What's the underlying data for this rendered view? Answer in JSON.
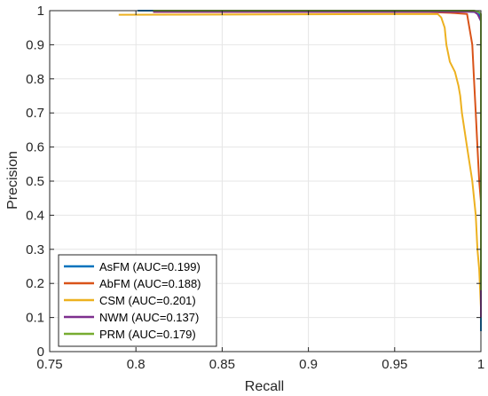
{
  "chart_data": {
    "type": "line",
    "xlabel": "Recall",
    "ylabel": "Precision",
    "xlim": [
      0.75,
      1.0
    ],
    "ylim": [
      0,
      1
    ],
    "xticks": [
      0.75,
      0.8,
      0.85,
      0.9,
      0.95,
      1.0
    ],
    "xtick_labels": [
      "0.75",
      "0.8",
      "0.85",
      "0.9",
      "0.95",
      "1"
    ],
    "yticks": [
      0,
      0.1,
      0.2,
      0.3,
      0.4,
      0.5,
      0.6,
      0.7,
      0.8,
      0.9,
      1.0
    ],
    "ytick_labels": [
      "0",
      "0.1",
      "0.2",
      "0.3",
      "0.4",
      "0.5",
      "0.6",
      "0.7",
      "0.8",
      "0.9",
      "1"
    ],
    "grid": true,
    "legend_position": "bottom-left",
    "series": [
      {
        "name": "AsFM (AUC=0.199)",
        "color": "#0072BD",
        "points": [
          [
            0.801,
            1.0
          ],
          [
            0.822,
            1.0
          ],
          [
            0.822,
            0.998
          ],
          [
            0.99,
            0.998
          ],
          [
            0.999,
            0.995
          ],
          [
            0.999,
            0.98
          ],
          [
            1.0,
            0.97
          ],
          [
            1.0,
            0.06
          ]
        ]
      },
      {
        "name": "AbFM (AUC=0.188)",
        "color": "#D95319",
        "points": [
          [
            0.81,
            0.996
          ],
          [
            0.97,
            0.996
          ],
          [
            0.985,
            0.993
          ],
          [
            0.992,
            0.99
          ],
          [
            0.995,
            0.9
          ],
          [
            0.996,
            0.8
          ],
          [
            0.997,
            0.7
          ],
          [
            0.998,
            0.6
          ],
          [
            0.999,
            0.5
          ],
          [
            1.0,
            0.44
          ],
          [
            1.0,
            0.12
          ]
        ]
      },
      {
        "name": "CSM (AUC=0.201)",
        "color": "#EDB120",
        "points": [
          [
            0.79,
            0.988
          ],
          [
            0.975,
            0.99
          ],
          [
            0.977,
            0.98
          ],
          [
            0.979,
            0.95
          ],
          [
            0.98,
            0.9
          ],
          [
            0.982,
            0.85
          ],
          [
            0.985,
            0.82
          ],
          [
            0.987,
            0.78
          ],
          [
            0.988,
            0.75
          ],
          [
            0.989,
            0.7
          ],
          [
            0.992,
            0.6
          ],
          [
            0.995,
            0.5
          ],
          [
            0.997,
            0.4
          ],
          [
            0.998,
            0.3
          ],
          [
            0.999,
            0.24
          ],
          [
            1.0,
            0.13
          ]
        ]
      },
      {
        "name": "NWM (AUC=0.137)",
        "color": "#7E2F8E",
        "points": [
          [
            0.81,
            0.997
          ],
          [
            0.996,
            0.997
          ],
          [
            0.998,
            0.99
          ],
          [
            0.999,
            0.98
          ],
          [
            1.0,
            0.97
          ],
          [
            1.0,
            0.1
          ]
        ]
      },
      {
        "name": "PRM (AUC=0.179)",
        "color": "#77AC30",
        "points": [
          [
            0.81,
            1.0
          ],
          [
            0.996,
            1.0
          ],
          [
            0.998,
            0.998
          ],
          [
            0.999,
            0.995
          ],
          [
            1.0,
            0.99
          ],
          [
            1.0,
            0.3
          ],
          [
            1.0,
            0.18
          ]
        ]
      }
    ]
  }
}
